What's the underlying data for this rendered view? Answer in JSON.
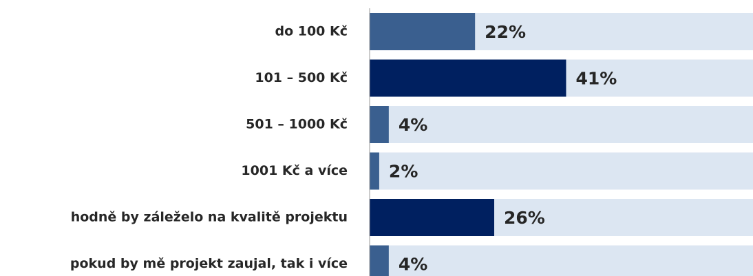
{
  "chart_data": {
    "type": "bar",
    "orientation": "horizontal",
    "categories": [
      "do 100 Kč",
      "101 – 500 Kč",
      "501 – 1000 Kč",
      "1001 Kč a více",
      "hodně by záleželo na kvalitě projektu",
      "pokud by mě projekt zaujal, tak i více"
    ],
    "values": [
      22,
      41,
      4,
      2,
      26,
      4
    ],
    "value_labels": [
      "22%",
      "41%",
      "4%",
      "2%",
      "26%",
      "4%"
    ],
    "colors": [
      "#3a5f8f",
      "#002060",
      "#3a5f8f",
      "#3a5f8f",
      "#002060",
      "#3a5f8f"
    ],
    "xlim": [
      0,
      80
    ]
  }
}
